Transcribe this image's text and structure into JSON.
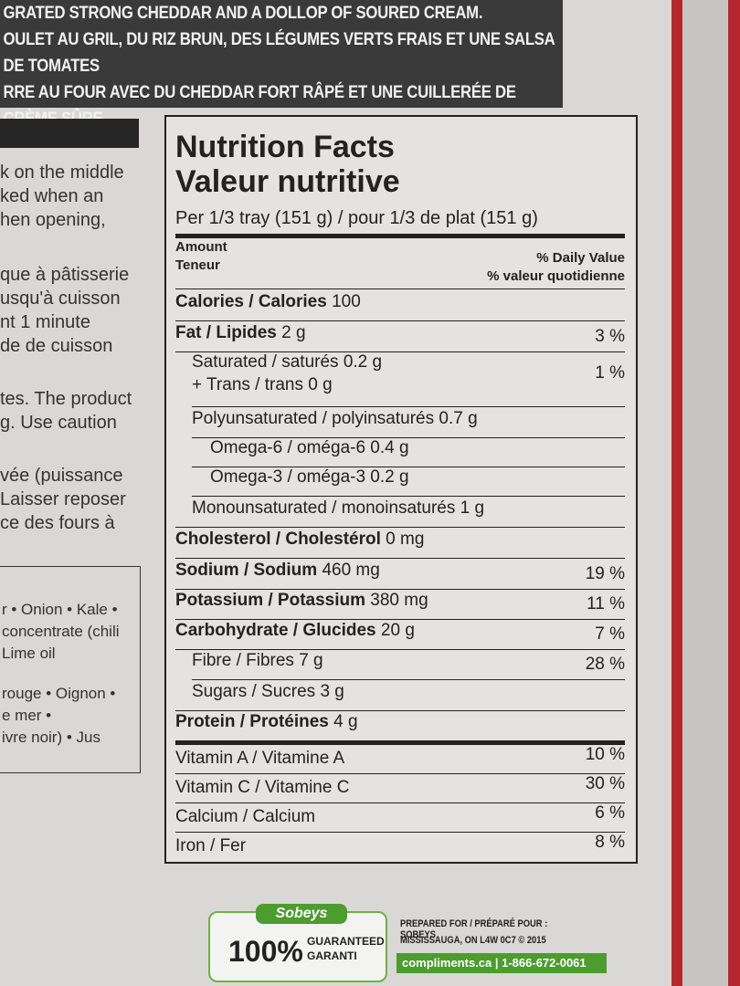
{
  "banner": {
    "lines": [
      "GRATED STRONG CHEDDAR AND A DOLLOP OF SOURED CREAM.",
      "OULET AU GRIL, DU RIZ BRUN, DES LÉGUMES VERTS FRAIS ET UNE SALSA DE TOMATES",
      "RRE AU FOUR AVEC DU CHEDDAR FORT RÂPÉ ET UNE CUILLERÉE DE CRÈME SÛRE."
    ]
  },
  "instructions": {
    "lines": [
      "k on the middle",
      "ked when an",
      "hen opening,",
      "que à pâtisserie",
      "usqu'à cuisson",
      "nt 1 minute",
      "de de cuisson",
      "tes. The product",
      "g. Use caution",
      "vée (puissance",
      "Laisser reposer",
      "ce des fours à"
    ]
  },
  "ingredients": {
    "lines": [
      "r • Onion • Kale •",
      "concentrate (chili",
      "Lime oil",
      "rouge • Oignon •",
      "e mer •",
      "ivre noir) • Jus"
    ]
  },
  "nutrition": {
    "title": "Nutrition Facts",
    "title_fr": "Valeur nutritive",
    "serving": "Per 1/3 tray (151 g) / pour 1/3 de plat (151 g)",
    "amount": "Amount",
    "amount_fr": "Teneur",
    "daily_value": "% Daily Value",
    "daily_value_fr": "% valeur quotidienne",
    "rows": [
      {
        "label": "Calories / Calories",
        "amount": "100"
      },
      {
        "label": "Fat / Lipides",
        "amount": "2 g",
        "dv": "3 %"
      },
      {
        "label": "Saturated / saturés 0.2 g",
        "line2": "+ Trans / trans 0 g",
        "dv": "1 %"
      },
      {
        "label": "Polyunsaturated / polyinsaturés 0.7 g"
      },
      {
        "label": "Omega-6 / oméga-6 0.4 g"
      },
      {
        "label": "Omega-3 / oméga-3 0.2 g"
      },
      {
        "label": "Monounsaturated / monoinsaturés 1 g"
      },
      {
        "label": "Cholesterol / Cholestérol",
        "amount": "0 mg"
      },
      {
        "label": "Sodium / Sodium",
        "amount": "460 mg",
        "dv": "19 %"
      },
      {
        "label": "Potassium / Potassium",
        "amount": "380 mg",
        "dv": "11 %"
      },
      {
        "label": "Carbohydrate / Glucides",
        "amount": "20 g",
        "dv": "7 %"
      },
      {
        "label": "Fibre / Fibres 7 g",
        "dv": "28 %"
      },
      {
        "label": "Sugars / Sucres 3 g"
      },
      {
        "label": "Protein / Protéines",
        "amount": "4 g"
      }
    ],
    "vitamins": [
      {
        "label": "Vitamin A / Vitamine A",
        "dv": "10 %"
      },
      {
        "label": "Vitamin C / Vitamine C",
        "dv": "30 %"
      },
      {
        "label": "Calcium / Calcium",
        "dv": "6 %"
      },
      {
        "label": "Iron / Fer",
        "dv": "8 %"
      }
    ]
  },
  "footer": {
    "brand": "Sobeys",
    "guarantee": "100%",
    "guaranteed": "GUARANTEED",
    "garanti": "GARANTI",
    "prepared_for": "PREPARED FOR / PRÉPARÉ POUR : SOBEYS",
    "address": "MISSISSAUGA, ON L4W 0C7 © 2015",
    "contact": "compliments.ca | 1-866-672-0061"
  }
}
